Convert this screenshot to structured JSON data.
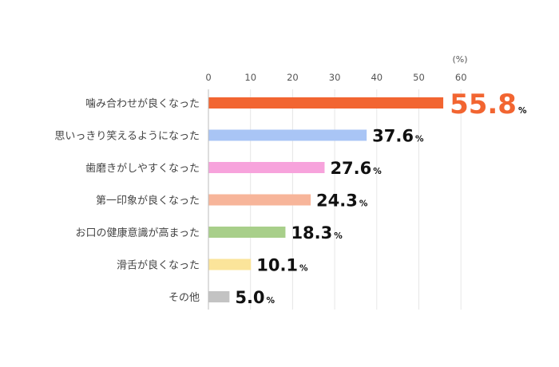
{
  "chart_data": {
    "type": "bar",
    "orientation": "horizontal",
    "unit_label": "(%)",
    "xlim": [
      0,
      60
    ],
    "xticks": [
      0,
      10,
      20,
      30,
      40,
      50,
      60
    ],
    "percent_suffix": "%",
    "grid": true,
    "categories": [
      "噛み合わせが良くなった",
      "思いっきり笑えるようになった",
      "歯磨きがしやすくなった",
      "第一印象が良くなった",
      "お口の健康意識が高まった",
      "滑舌が良くなった",
      "その他"
    ],
    "values": [
      55.8,
      37.6,
      27.6,
      24.3,
      18.3,
      10.1,
      5.0
    ],
    "value_labels": [
      "55.8",
      "37.6",
      "27.6",
      "24.3",
      "18.3",
      "10.1",
      "5.0"
    ],
    "colors": [
      "#f26531",
      "#a9c5f5",
      "#f7a3dc",
      "#f7b59a",
      "#a8cf8a",
      "#fbe49a",
      "#c3c3c3"
    ],
    "highlight_index": 0
  }
}
